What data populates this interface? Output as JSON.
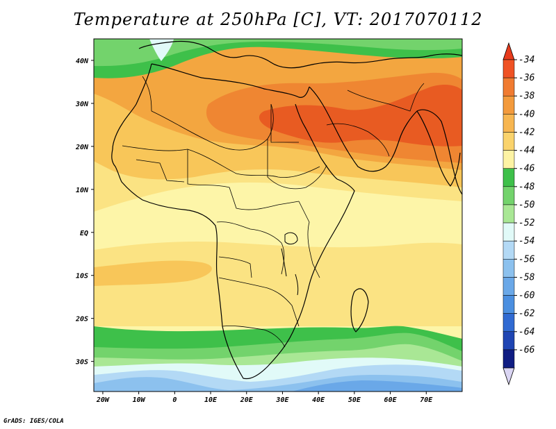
{
  "title": "Temperature at 250hPa [C], VT: 2017070112",
  "credit": "GrADS: IGES/COLA",
  "colors": {
    "ocean_bg": "#fdf5a8",
    "band_light": "#fbe383",
    "band_warm": "#f8c659",
    "band_orange": "#f3a640",
    "band_deep": "#ef8632",
    "band_hot": "#e85b22",
    "green_dark": "#3ec04a",
    "green_mid": "#73d36c",
    "green_light": "#a9e795",
    "cyan_pale": "#e1faf8",
    "blue_pale": "#b3d9f5",
    "blue_light": "#8cc1ee",
    "blue_mid": "#6aa8e8",
    "coast": "#000000"
  },
  "chart_data": {
    "type": "heatmap",
    "title": "Temperature at 250hPa [C], VT: 2017070112",
    "x_ticks": [
      "20W",
      "10W",
      "0",
      "10E",
      "20E",
      "30E",
      "40E",
      "50E",
      "60E",
      "70E"
    ],
    "x_tick_values": [
      -20,
      -10,
      0,
      10,
      20,
      30,
      40,
      50,
      60,
      70
    ],
    "y_ticks": [
      "40N",
      "30N",
      "20N",
      "10N",
      "EQ",
      "10S",
      "20S",
      "30S"
    ],
    "y_tick_values": [
      40,
      30,
      20,
      10,
      0,
      -10,
      -20,
      -30
    ],
    "xlim": [
      -22.5,
      80
    ],
    "ylim": [
      -37,
      45
    ],
    "colorbar": {
      "labels": [
        "-34",
        "-36",
        "-38",
        "-40",
        "-42",
        "-44",
        "-46",
        "-48",
        "-50",
        "-52",
        "-54",
        "-56",
        "-58",
        "-60",
        "-62",
        "-64",
        "-66"
      ],
      "colors": [
        "#ef5224",
        "#f07b31",
        "#f39a3c",
        "#f7b650",
        "#fad36c",
        "#fdf3a4",
        "#3ec04a",
        "#73d36c",
        "#a9e795",
        "#e1faf8",
        "#b3d9f5",
        "#8cc1ee",
        "#6aa8e8",
        "#4b8fe0",
        "#306ad2",
        "#1f45b3",
        "#101d83"
      ],
      "over_color": "#e83b1c",
      "under_color": "#dad5f3"
    }
  }
}
